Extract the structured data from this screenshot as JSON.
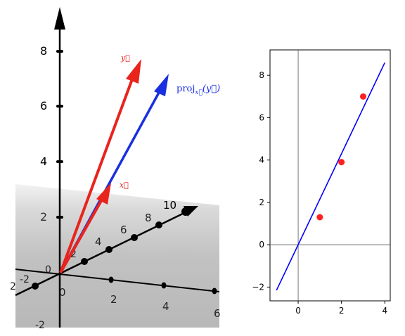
{
  "scene3d": {
    "vertical_ticks": [
      "2",
      "4",
      "6",
      "8"
    ],
    "diagonal_ticks": [
      "2",
      "4",
      "6",
      "8",
      "10"
    ],
    "right_ticks": [
      "0",
      "2",
      "4",
      "6"
    ],
    "corner_labels": {
      "left_a": "-2",
      "left_b": "-2",
      "origin": "0"
    },
    "vectors": [
      {
        "name": "x",
        "label": "x⃗",
        "color": "#e8241c"
      },
      {
        "name": "y",
        "label": "y⃗",
        "color": "#e8241c"
      },
      {
        "name": "proj",
        "label_main": "proj",
        "label_sub": "x⃗",
        "label_arg": "(y⃗)",
        "color": "#1a2fe0"
      }
    ]
  },
  "chart_data": {
    "type": "scatter",
    "points": [
      {
        "x": 1,
        "y": 1.3
      },
      {
        "x": 2,
        "y": 3.9
      },
      {
        "x": 3,
        "y": 7.0
      }
    ],
    "fit_line": {
      "x": [
        -1,
        4
      ],
      "y": [
        -2.15,
        8.6
      ]
    },
    "xlim": [
      -1.3,
      4.25
    ],
    "ylim": [
      -2.65,
      9.2
    ],
    "x_ticks": [
      "0",
      "2",
      "4"
    ],
    "y_ticks": [
      "-2",
      "0",
      "2",
      "4",
      "6",
      "8"
    ],
    "point_color": "#ff1f1f",
    "line_color": "#0000ff",
    "grid": false
  }
}
